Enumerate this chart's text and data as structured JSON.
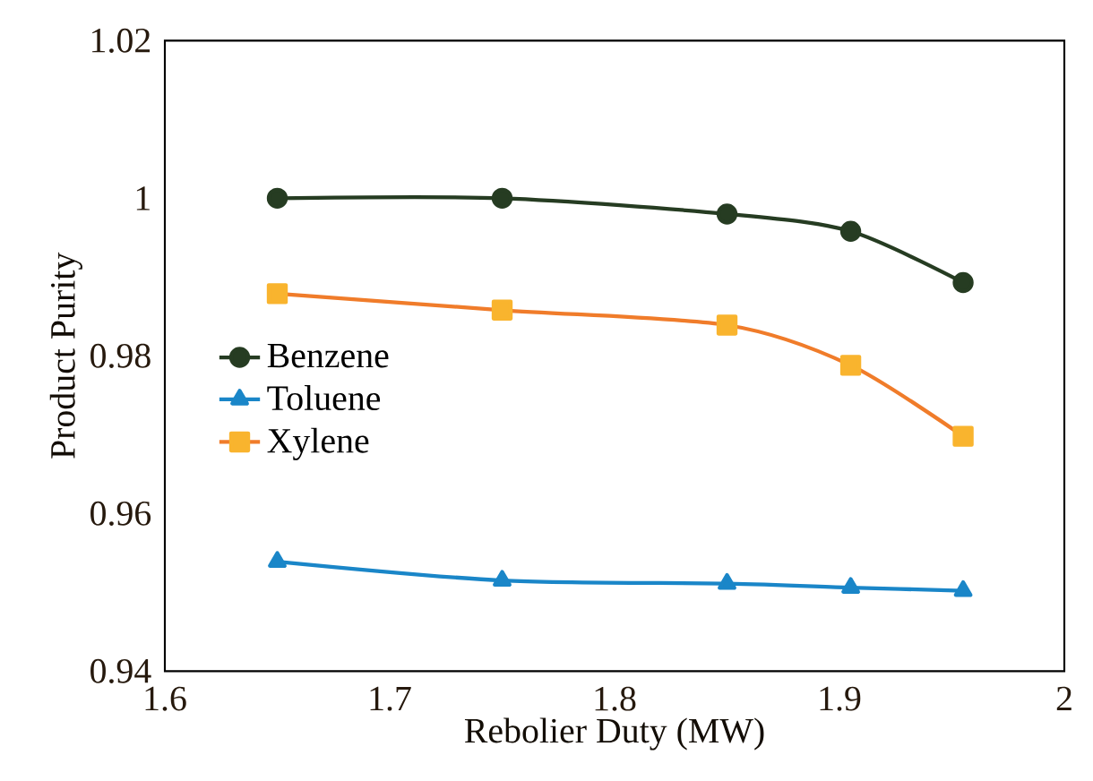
{
  "chart_data": {
    "type": "line",
    "xlabel": "Rebolier Duty (MW)",
    "ylabel": "Product Purity",
    "x": [
      1.65,
      1.75,
      1.85,
      1.905,
      1.955
    ],
    "series": [
      {
        "name": "Benzene",
        "color": "#263c22",
        "marker": "circle",
        "values": [
          1.0,
          1.0,
          0.998,
          0.9958,
          0.9893
        ]
      },
      {
        "name": "Toluene",
        "color": "#1a86c8",
        "marker": "triangle",
        "values": [
          0.9539,
          0.9515,
          0.9511,
          0.9506,
          0.9502
        ]
      },
      {
        "name": "Xylene",
        "color": "#f07c2a",
        "marker": "square",
        "values": [
          0.9879,
          0.9858,
          0.9839,
          0.9788,
          0.9698
        ]
      }
    ],
    "xlim": [
      1.6,
      2
    ],
    "xticks": [
      1.6,
      1.7,
      1.8,
      1.9,
      2
    ],
    "ylim": [
      0.94,
      1.02
    ],
    "yticks": [
      0.94,
      0.96,
      0.98,
      1,
      1.02
    ],
    "grid": false,
    "legend": "left",
    "line_style": "solid"
  }
}
